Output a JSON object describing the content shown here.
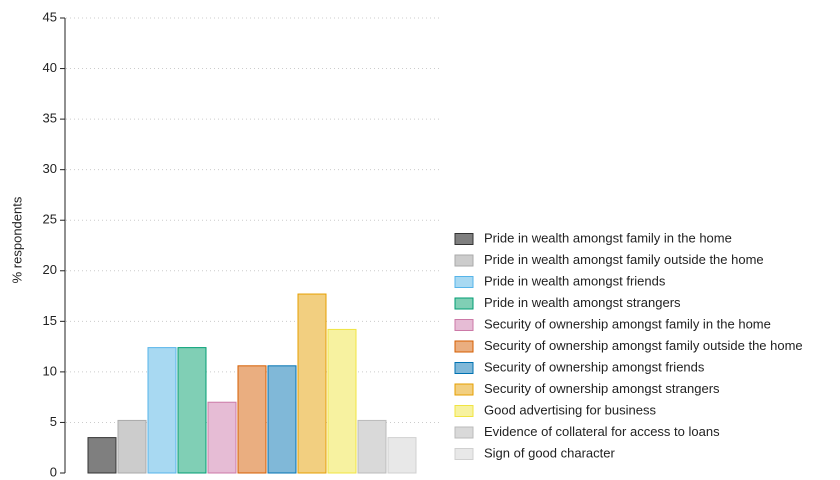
{
  "chart_data": {
    "type": "bar",
    "y_label": "% respondents",
    "ylim": [
      0,
      45
    ],
    "yticks": [
      0,
      5,
      10,
      15,
      20,
      25,
      30,
      35,
      40,
      45
    ],
    "grid": true,
    "legend": "right",
    "series": [
      {
        "name": "Pride in wealth amongst family in the home",
        "color": "#7f7f7f",
        "edge": "#333333",
        "values": [
          3.5
        ]
      },
      {
        "name": "Pride in wealth amongst family outside the home",
        "color": "#cccccc",
        "edge": "#aaaaaa",
        "values": [
          5.2
        ]
      },
      {
        "name": "Pride in wealth amongst friends",
        "color": "#a8d9f2",
        "edge": "#56b4e9",
        "values": [
          12.4
        ]
      },
      {
        "name": "Pride in wealth amongst strangers",
        "color": "#80cfb5",
        "edge": "#009e73",
        "values": [
          12.4
        ]
      },
      {
        "name": "Security of ownership amongst family in the home",
        "color": "#e6bcd5",
        "edge": "#cc79a7",
        "values": [
          7.0
        ]
      },
      {
        "name": "Security of ownership amongst family outside the home",
        "color": "#eaae80",
        "edge": "#d55e00",
        "values": [
          10.6
        ]
      },
      {
        "name": "Security of ownership amongst friends",
        "color": "#80b8d8",
        "edge": "#0072b2",
        "values": [
          10.6
        ]
      },
      {
        "name": "Security of ownership amongst strangers",
        "color": "#f2cf80",
        "edge": "#e69f00",
        "values": [
          17.7
        ]
      },
      {
        "name": "Good advertising for business",
        "color": "#f7f2a0",
        "edge": "#f0e442",
        "values": [
          14.2
        ]
      },
      {
        "name": "Evidence of collateral for access to loans",
        "color": "#d9d9d9",
        "edge": "#bbbbbb",
        "values": [
          5.2
        ]
      },
      {
        "name": "Sign of good character",
        "color": "#e8e8e8",
        "edge": "#d0d0d0",
        "values": [
          3.5
        ]
      }
    ]
  }
}
